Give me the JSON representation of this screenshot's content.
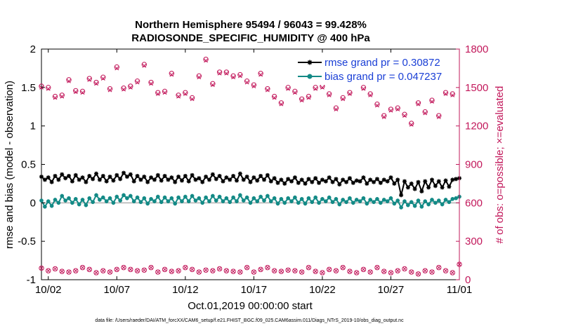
{
  "chart_data": {
    "type": "line",
    "title_line1": "Northern Hemisphere 95494 / 96043 = 99.428%",
    "title_line2": "RADIOSONDE_SPECIFIC_HUMIDITY @ 400 hPa",
    "xlabel": "Oct.01,2019 00:00:00 start",
    "ylabel_left": "rmse and bias (model - observation)",
    "ylabel_right": "# of obs: o=possible; ×=evaluated",
    "footnote": "data file: /Users/raeder/DAI/ATM_forcXX/CAM6_setup/f.e21.FHIST_BGC.f09_025.CAM6assim.011/Diags_NTrS_2019-10/obs_diag_output.nc",
    "xlim": [
      1.5,
      32
    ],
    "ylim_left": [
      -1,
      2
    ],
    "ylim_right": [
      0,
      1800
    ],
    "x_ticks": [
      2,
      7,
      12,
      17,
      22,
      27,
      32
    ],
    "x_tick_labels": [
      "10/02",
      "10/07",
      "10/12",
      "10/17",
      "10/22",
      "10/27",
      "11/01"
    ],
    "y_left_ticks": [
      -1,
      -0.5,
      0,
      0.5,
      1,
      1.5,
      2
    ],
    "y_left_tick_labels": [
      "-1",
      "-0.5",
      "0",
      "0.5",
      "1",
      "1.5",
      "2"
    ],
    "y_right_ticks": [
      0,
      300,
      600,
      900,
      1200,
      1500,
      1800
    ],
    "y_right_tick_labels": [
      "0",
      "300",
      "600",
      "900",
      "1200",
      "1500",
      "1800"
    ],
    "colors": {
      "rmse": "#000000",
      "bias": "#138a86",
      "obs": "#c2185b",
      "legend_text": "#1a3fd6",
      "zero_line": "#b0b0b0"
    },
    "legend": [
      {
        "name": "rmse grand pr = 0.30872",
        "series": "rmse"
      },
      {
        "name": "bias grand pr = 0.047237",
        "series": "bias"
      }
    ],
    "rmse": {
      "x": [
        1.5,
        1.75,
        2,
        2.25,
        2.5,
        2.75,
        3,
        3.25,
        3.5,
        3.75,
        4,
        4.25,
        4.5,
        4.75,
        5,
        5.25,
        5.5,
        5.75,
        6,
        6.25,
        6.5,
        6.75,
        7,
        7.25,
        7.5,
        7.75,
        8,
        8.25,
        8.5,
        8.75,
        9,
        9.25,
        9.5,
        9.75,
        10,
        10.25,
        10.5,
        10.75,
        11,
        11.25,
        11.5,
        11.75,
        12,
        12.25,
        12.5,
        12.75,
        13,
        13.25,
        13.5,
        13.75,
        14,
        14.25,
        14.5,
        14.75,
        15,
        15.25,
        15.5,
        15.75,
        16,
        16.25,
        16.5,
        16.75,
        17,
        17.25,
        17.5,
        17.75,
        18,
        18.25,
        18.5,
        18.75,
        19,
        19.25,
        19.5,
        19.75,
        20,
        20.25,
        20.5,
        20.75,
        21,
        21.25,
        21.5,
        21.75,
        22,
        22.25,
        22.5,
        22.75,
        23,
        23.25,
        23.5,
        23.75,
        24,
        24.25,
        24.5,
        24.75,
        25,
        25.25,
        25.5,
        25.75,
        26,
        26.25,
        26.5,
        26.75,
        27,
        27.25,
        27.5,
        27.75,
        28,
        28.25,
        28.5,
        28.75,
        29,
        29.25,
        29.5,
        29.75,
        30,
        30.25,
        30.5,
        30.75,
        31,
        31.25,
        31.5,
        31.75,
        32
      ],
      "values": [
        0.34,
        0.3,
        0.33,
        0.27,
        0.35,
        0.3,
        0.37,
        0.32,
        0.35,
        0.28,
        0.36,
        0.3,
        0.33,
        0.27,
        0.35,
        0.31,
        0.38,
        0.3,
        0.35,
        0.28,
        0.34,
        0.29,
        0.36,
        0.31,
        0.39,
        0.34,
        0.37,
        0.28,
        0.35,
        0.3,
        0.34,
        0.27,
        0.33,
        0.3,
        0.36,
        0.29,
        0.35,
        0.3,
        0.33,
        0.27,
        0.34,
        0.29,
        0.35,
        0.28,
        0.36,
        0.3,
        0.32,
        0.27,
        0.34,
        0.3,
        0.37,
        0.31,
        0.35,
        0.28,
        0.33,
        0.3,
        0.35,
        0.29,
        0.38,
        0.3,
        0.34,
        0.27,
        0.33,
        0.29,
        0.35,
        0.3,
        0.36,
        0.28,
        0.32,
        0.26,
        0.3,
        0.25,
        0.31,
        0.28,
        0.33,
        0.26,
        0.3,
        0.25,
        0.31,
        0.27,
        0.32,
        0.26,
        0.3,
        0.28,
        0.33,
        0.27,
        0.31,
        0.24,
        0.3,
        0.27,
        0.32,
        0.26,
        0.29,
        0.28,
        0.33,
        0.25,
        0.3,
        0.27,
        0.31,
        0.26,
        0.3,
        0.28,
        0.33,
        0.25,
        0.3,
        0.1,
        0.28,
        0.2,
        0.25,
        0.18,
        0.27,
        0.15,
        0.28,
        0.2,
        0.3,
        0.22,
        0.28,
        0.2,
        0.29,
        0.21,
        0.3,
        0.31,
        0.32
      ]
    },
    "bias": {
      "x": [
        1.5,
        1.75,
        2,
        2.25,
        2.5,
        2.75,
        3,
        3.25,
        3.5,
        3.75,
        4,
        4.25,
        4.5,
        4.75,
        5,
        5.25,
        5.5,
        5.75,
        6,
        6.25,
        6.5,
        6.75,
        7,
        7.25,
        7.5,
        7.75,
        8,
        8.25,
        8.5,
        8.75,
        9,
        9.25,
        9.5,
        9.75,
        10,
        10.25,
        10.5,
        10.75,
        11,
        11.25,
        11.5,
        11.75,
        12,
        12.25,
        12.5,
        12.75,
        13,
        13.25,
        13.5,
        13.75,
        14,
        14.25,
        14.5,
        14.75,
        15,
        15.25,
        15.5,
        15.75,
        16,
        16.25,
        16.5,
        16.75,
        17,
        17.25,
        17.5,
        17.75,
        18,
        18.25,
        18.5,
        18.75,
        19,
        19.25,
        19.5,
        19.75,
        20,
        20.25,
        20.5,
        20.75,
        21,
        21.25,
        21.5,
        21.75,
        22,
        22.25,
        22.5,
        22.75,
        23,
        23.25,
        23.5,
        23.75,
        24,
        24.25,
        24.5,
        24.75,
        25,
        25.25,
        25.5,
        25.75,
        26,
        26.25,
        26.5,
        26.75,
        27,
        27.25,
        27.5,
        27.75,
        28,
        28.25,
        28.5,
        28.75,
        29,
        29.25,
        29.5,
        29.75,
        30,
        30.25,
        30.5,
        30.75,
        31,
        31.25,
        31.5,
        31.75,
        32
      ],
      "values": [
        0.03,
        -0.05,
        0.02,
        -0.04,
        0.04,
        0.0,
        0.09,
        0.03,
        0.06,
        0.0,
        0.05,
        -0.02,
        0.04,
        -0.03,
        0.06,
        0.01,
        0.1,
        0.04,
        0.07,
        0.02,
        0.06,
        0.0,
        0.08,
        0.03,
        0.1,
        0.06,
        0.09,
        0.02,
        0.07,
        0.01,
        0.06,
        -0.01,
        0.05,
        0.02,
        0.08,
        0.01,
        0.07,
        0.02,
        0.06,
        -0.01,
        0.07,
        0.02,
        0.08,
        0.02,
        0.09,
        0.03,
        0.06,
        0.0,
        0.07,
        0.02,
        0.09,
        0.03,
        0.08,
        0.02,
        0.06,
        0.01,
        0.07,
        0.02,
        0.1,
        0.03,
        0.07,
        0.0,
        0.06,
        0.02,
        0.08,
        0.03,
        0.09,
        0.02,
        0.06,
        -0.01,
        0.05,
        0.0,
        0.06,
        0.02,
        0.07,
        0.0,
        0.05,
        -0.01,
        0.06,
        0.01,
        0.07,
        0.0,
        0.05,
        0.02,
        0.07,
        0.01,
        0.05,
        -0.02,
        0.04,
        0.01,
        0.06,
        0.0,
        0.04,
        0.02,
        0.06,
        -0.01,
        0.04,
        0.01,
        0.05,
        0.0,
        0.04,
        0.02,
        0.06,
        -0.01,
        0.03,
        -0.06,
        0.02,
        -0.03,
        0.01,
        -0.04,
        0.03,
        -0.05,
        0.02,
        -0.02,
        0.04,
        0.0,
        0.03,
        -0.02,
        0.04,
        0.01,
        0.05,
        0.06,
        0.08
      ]
    },
    "obs_possible": {
      "x": [
        1.5,
        2,
        2.5,
        3,
        3.5,
        4,
        4.5,
        5,
        5.5,
        6,
        6.5,
        7,
        7.5,
        8,
        8.5,
        9,
        9.5,
        10,
        10.5,
        11,
        11.5,
        12,
        12.5,
        13,
        13.5,
        14,
        14.5,
        15,
        15.5,
        16,
        16.5,
        17,
        17.5,
        18,
        18.5,
        19,
        19.5,
        20,
        20.5,
        21,
        21.5,
        22,
        22.5,
        23,
        23.5,
        24,
        24.5,
        25,
        25.5,
        26,
        26.5,
        27,
        27.5,
        28,
        28.5,
        29,
        29.5,
        30,
        30.5,
        31,
        31.5
      ],
      "values": [
        1510,
        1500,
        1430,
        1440,
        1560,
        1475,
        1470,
        1570,
        1540,
        1580,
        1490,
        1660,
        1495,
        1510,
        1550,
        1680,
        1540,
        1460,
        1470,
        1610,
        1440,
        1460,
        1420,
        1590,
        1720,
        1530,
        1620,
        1620,
        1590,
        1600,
        1550,
        1520,
        1610,
        1490,
        1430,
        1380,
        1500,
        1470,
        1410,
        1430,
        1500,
        1510,
        1450,
        1340,
        1420,
        1460,
        1570,
        1500,
        1450,
        1370,
        1280,
        1330,
        1340,
        1290,
        1220,
        1380,
        1310,
        1400,
        1280,
        1460,
        1450
      ]
    },
    "obs_evaluated": {
      "x": [
        1.5,
        2,
        2.5,
        3,
        3.5,
        4,
        4.5,
        5,
        5.5,
        6,
        6.5,
        7,
        7.5,
        8,
        8.5,
        9,
        9.5,
        10,
        10.5,
        11,
        11.5,
        12,
        12.5,
        13,
        13.5,
        14,
        14.5,
        15,
        15.5,
        16,
        16.5,
        17,
        17.5,
        18,
        18.5,
        19,
        19.5,
        20,
        20.5,
        21,
        21.5,
        22,
        22.5,
        23,
        23.5,
        24,
        24.5,
        25,
        25.5,
        26,
        26.5,
        27,
        27.5,
        28,
        28.5,
        29,
        29.5,
        30,
        30.5,
        31,
        31.5
      ],
      "values": [
        1500,
        1490,
        1420,
        1430,
        1550,
        1465,
        1460,
        1560,
        1530,
        1570,
        1480,
        1650,
        1485,
        1500,
        1540,
        1670,
        1530,
        1450,
        1460,
        1600,
        1430,
        1450,
        1410,
        1580,
        1710,
        1520,
        1610,
        1610,
        1580,
        1590,
        1540,
        1510,
        1600,
        1480,
        1420,
        1370,
        1490,
        1460,
        1400,
        1420,
        1490,
        1500,
        1440,
        1330,
        1410,
        1450,
        1560,
        1490,
        1440,
        1360,
        1270,
        1320,
        1330,
        1280,
        1210,
        1370,
        1300,
        1390,
        1270,
        1450,
        1440
      ]
    },
    "obs_possible_low": {
      "x": [
        1.5,
        2,
        2.5,
        3,
        3.5,
        4,
        4.5,
        5,
        5.5,
        6,
        6.5,
        7,
        7.5,
        8,
        8.5,
        9,
        9.5,
        10,
        10.5,
        11,
        11.5,
        12,
        12.5,
        13,
        13.5,
        14,
        14.5,
        15,
        15.5,
        16,
        16.5,
        17,
        17.5,
        18,
        18.5,
        19,
        19.5,
        20,
        20.5,
        21,
        21.5,
        22,
        22.5,
        23,
        23.5,
        24,
        24.5,
        25,
        25.5,
        26,
        26.5,
        27,
        27.5,
        28,
        28.5,
        29,
        29.5,
        30,
        30.5,
        31,
        31.5,
        32
      ],
      "values": [
        90,
        70,
        85,
        65,
        60,
        70,
        95,
        80,
        55,
        70,
        60,
        80,
        95,
        80,
        70,
        75,
        95,
        60,
        80,
        65,
        70,
        95,
        80,
        60,
        75,
        70,
        85,
        70,
        65,
        60,
        95,
        60,
        80,
        95,
        70,
        65,
        75,
        70,
        60,
        95,
        65,
        55,
        80,
        70,
        95,
        65,
        55,
        80,
        60,
        95,
        65,
        55,
        70,
        85,
        60,
        45,
        70,
        60,
        95,
        70,
        55,
        120
      ]
    }
  }
}
